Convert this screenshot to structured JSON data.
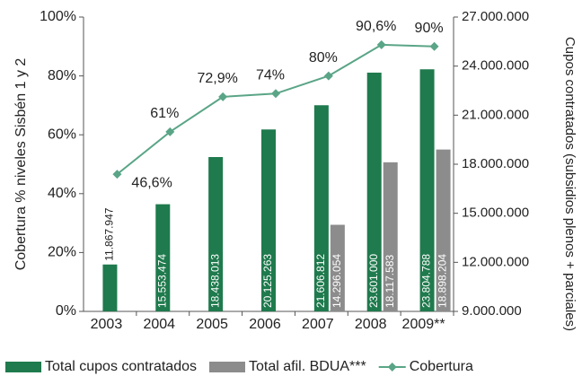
{
  "chart_data": {
    "type": "bar",
    "categories": [
      "2003",
      "2004",
      "2005",
      "2006",
      "2007",
      "2008",
      "2009**"
    ],
    "ylabel": "Cobertura % niveles Sisbén 1 y 2",
    "y2label": "Cupos contratados (subsidios plenos + parciales)",
    "ylim": [
      0,
      100
    ],
    "yticks": [
      {
        "value": 0,
        "label": "0%"
      },
      {
        "value": 20,
        "label": "20%"
      },
      {
        "value": 40,
        "label": "40%"
      },
      {
        "value": 60,
        "label": "60%"
      },
      {
        "value": 80,
        "label": "80%"
      },
      {
        "value": 100,
        "label": "100%"
      }
    ],
    "y2lim": [
      9000000,
      27000000
    ],
    "y2ticks": [
      {
        "value": 9000000,
        "label": "9.000.000"
      },
      {
        "value": 12000000,
        "label": "12.000.000"
      },
      {
        "value": 15000000,
        "label": "15.000.000"
      },
      {
        "value": 18000000,
        "label": "18.000.000"
      },
      {
        "value": 21000000,
        "label": "21.000.000"
      },
      {
        "value": 24000000,
        "label": "24.000.000"
      },
      {
        "value": 27000000,
        "label": "27.000.000"
      }
    ],
    "series": [
      {
        "name": "Total cupos contratados",
        "type": "bar",
        "axis": "y2",
        "color": "#1f7a4d",
        "values": [
          11867947,
          15553474,
          18438013,
          20125263,
          21606812,
          23601000,
          23804788
        ],
        "value_labels": [
          "11.867.947",
          "15.553.474",
          "18.438.013",
          "20.125.263",
          "21.606.812",
          "23.601.000",
          "23.804.788"
        ]
      },
      {
        "name": "Total afil. BDUA***",
        "type": "bar",
        "axis": "y2",
        "color": "#8c8c8c",
        "values": [
          null,
          null,
          null,
          null,
          14296054,
          18117583,
          18898204
        ],
        "value_labels": [
          null,
          null,
          null,
          null,
          "14.296.054",
          "18.117.583",
          "18.898.204"
        ]
      },
      {
        "name": "Cobertura",
        "type": "line",
        "color": "#5aa587",
        "values": [
          46.6,
          61,
          72.9,
          74,
          80,
          90.6,
          90
        ],
        "value_labels": [
          "46,6%",
          "61%",
          "72,9%",
          "74%",
          "80%",
          "90,6%",
          "90%"
        ]
      }
    ]
  }
}
